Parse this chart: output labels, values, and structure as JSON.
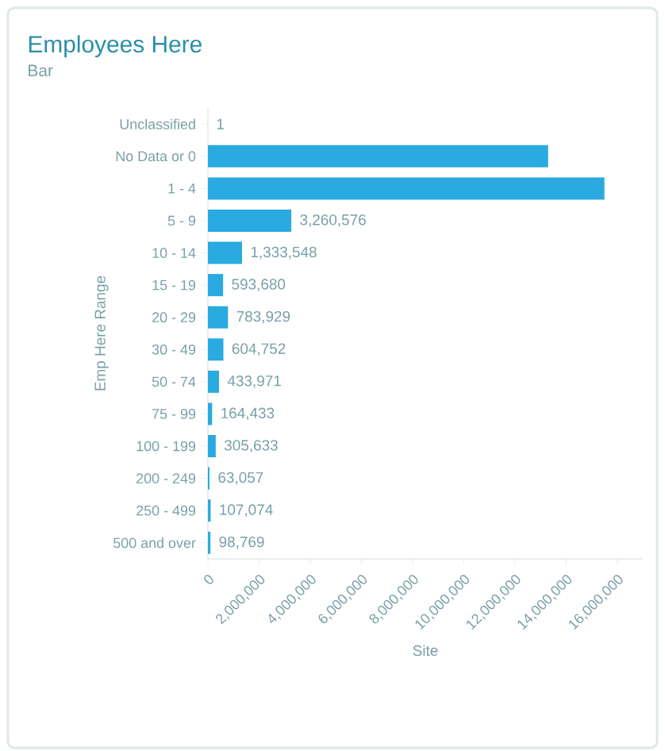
{
  "chart_data": {
    "type": "bar",
    "orientation": "horizontal",
    "title": "Employees Here",
    "subtitle": "Bar",
    "xlabel": "Site",
    "ylabel": "Emp Here Range",
    "categories": [
      "Unclassified",
      "No Data or 0",
      "1 - 4",
      "5 - 9",
      "10 - 14",
      "15 - 19",
      "20 - 29",
      "30 - 49",
      "50 - 74",
      "75 - 99",
      "100 - 199",
      "200 - 249",
      "250 - 499",
      "500 and over"
    ],
    "values": [
      1,
      13300000,
      15500000,
      3260576,
      1333548,
      593680,
      783929,
      604752,
      433971,
      164433,
      305633,
      63057,
      107074,
      98769
    ],
    "value_labels": [
      "1",
      null,
      null,
      "3,260,576",
      "1,333,548",
      "593,680",
      "783,929",
      "604,752",
      "433,971",
      "164,433",
      "305,633",
      "63,057",
      "107,074",
      "98,769"
    ],
    "color": "#29aae1",
    "xlim": [
      0,
      17000000
    ],
    "xticks": [
      0,
      {
        "value": 2000000,
        "label": "2,000,000"
      },
      {
        "value": 4000000,
        "label": "4,000,000"
      },
      {
        "value": 6000000,
        "label": "6,000,000"
      },
      {
        "value": 8000000,
        "label": "8,000,000"
      },
      {
        "value": 10000000,
        "label": "10,000,000"
      },
      {
        "value": 12000000,
        "label": "12,000,000"
      },
      {
        "value": 14000000,
        "label": "14,000,000"
      },
      {
        "value": 16000000,
        "label": "16,000,000"
      }
    ],
    "grid": false
  }
}
